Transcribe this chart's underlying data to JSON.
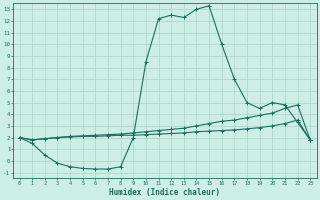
{
  "title": "",
  "xlabel": "Humidex (Indice chaleur)",
  "bg_color": "#cceee4",
  "grid_color": "#aad4c8",
  "line_color": "#1a6e60",
  "xlim": [
    -0.5,
    23.5
  ],
  "ylim": [
    -1.5,
    13.5
  ],
  "xticks": [
    0,
    1,
    2,
    3,
    4,
    5,
    6,
    7,
    8,
    9,
    10,
    11,
    12,
    13,
    14,
    15,
    16,
    17,
    18,
    19,
    20,
    21,
    22,
    23
  ],
  "yticks": [
    -1,
    0,
    1,
    2,
    3,
    4,
    5,
    6,
    7,
    8,
    9,
    10,
    11,
    12,
    13
  ],
  "line1_x": [
    0,
    1,
    2,
    3,
    4,
    5,
    6,
    7,
    8,
    9,
    10,
    11,
    12,
    13,
    14,
    15,
    16,
    17,
    18,
    19,
    20,
    21,
    22,
    23
  ],
  "line1_y": [
    2.0,
    1.5,
    0.5,
    -0.2,
    -0.5,
    -0.65,
    -0.7,
    -0.7,
    -0.5,
    2.0,
    8.5,
    12.2,
    12.5,
    12.3,
    13.0,
    13.3,
    10.0,
    7.0,
    5.0,
    4.5,
    5.0,
    4.8,
    3.3,
    1.8
  ],
  "line2_x": [
    0,
    1,
    2,
    3,
    4,
    5,
    6,
    7,
    8,
    9,
    10,
    11,
    12,
    13,
    14,
    15,
    16,
    17,
    18,
    19,
    20,
    21,
    22,
    23
  ],
  "line2_y": [
    2.0,
    1.8,
    1.9,
    2.0,
    2.1,
    2.15,
    2.2,
    2.25,
    2.3,
    2.4,
    2.5,
    2.6,
    2.7,
    2.8,
    3.0,
    3.2,
    3.4,
    3.5,
    3.7,
    3.9,
    4.1,
    4.5,
    4.8,
    1.8
  ],
  "line3_x": [
    0,
    1,
    2,
    3,
    4,
    5,
    6,
    7,
    8,
    9,
    10,
    11,
    12,
    13,
    14,
    15,
    16,
    17,
    18,
    19,
    20,
    21,
    22,
    23
  ],
  "line3_y": [
    2.0,
    1.8,
    1.9,
    2.0,
    2.05,
    2.1,
    2.1,
    2.15,
    2.2,
    2.2,
    2.25,
    2.3,
    2.35,
    2.4,
    2.5,
    2.55,
    2.6,
    2.65,
    2.75,
    2.85,
    3.0,
    3.2,
    3.5,
    1.8
  ]
}
